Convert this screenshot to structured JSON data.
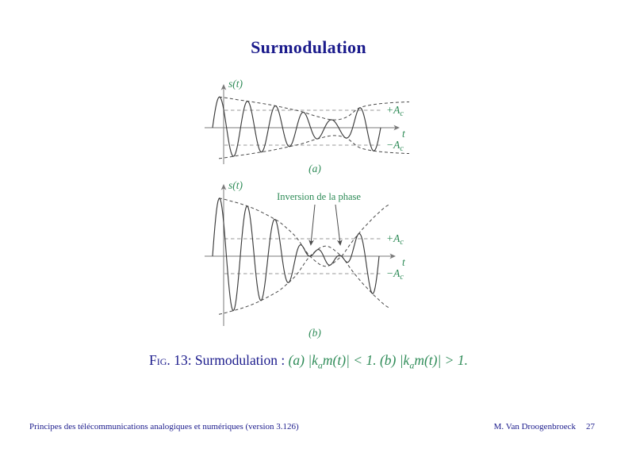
{
  "slide": {
    "title": "Surmodulation"
  },
  "colors": {
    "heading_text": "#1b1b8c",
    "figure_labels": "#2e8b57",
    "signal_line": "#3b3b3b",
    "envelope_line": "#4a4a4a",
    "ac_level_line": "#aeaeae",
    "axis_line": "#7a7a7a"
  },
  "figures": [
    {
      "id": "a",
      "label": "(a)",
      "axis_labels": {
        "y": "s(t)",
        "x": "t"
      },
      "level_labels": {
        "plus_base": "+A",
        "minus_base": "−A",
        "sub": "c"
      },
      "carrier_cycles": 6,
      "modulation_condition": "|ka m(t)| < 1",
      "envelope_ac_units": [
        [
          0.0,
          1.8
        ],
        [
          0.15,
          1.6
        ],
        [
          0.35,
          1.3
        ],
        [
          0.52,
          0.95
        ],
        [
          0.65,
          0.58
        ],
        [
          0.73,
          0.45
        ],
        [
          0.8,
          0.62
        ],
        [
          0.87,
          1.12
        ],
        [
          0.95,
          1.32
        ],
        [
          1.05,
          1.42
        ],
        [
          1.17,
          1.48
        ]
      ]
    },
    {
      "id": "b",
      "label": "(b)",
      "axis_labels": {
        "y": "s(t)",
        "x": "t"
      },
      "level_labels": {
        "plus_base": "+A",
        "minus_base": "−A",
        "sub": "c"
      },
      "annotation": "Inversion de la phase",
      "carrier_cycles": 6,
      "modulation_condition": "|ka m(t)| > 1",
      "phase_inversion_u": [
        0.585,
        0.775
      ],
      "envelope_ac_units": [
        [
          0.0,
          3.38
        ],
        [
          0.1,
          3.18
        ],
        [
          0.25,
          2.72
        ],
        [
          0.4,
          1.98
        ],
        [
          0.5,
          1.12
        ],
        [
          0.585,
          0.0
        ],
        [
          0.68,
          -0.58
        ],
        [
          0.775,
          0.0
        ],
        [
          0.84,
          0.85
        ],
        [
          0.9,
          1.55
        ],
        [
          0.97,
          2.25
        ],
        [
          1.06,
          2.95
        ]
      ]
    }
  ],
  "caption": {
    "fig_tag": "Fig.",
    "label_rest": " 13: Surmodulation : ",
    "math": {
      "p1": "(a) |k",
      "sub1": "a",
      "p2": "m(t)| < 1. (b) |k",
      "sub2": "a",
      "p3": "m(t)| > 1."
    }
  },
  "footer": {
    "left": "Principes des télécommunications analogiques et numériques (version 3.126)",
    "author": "M. Van Droogenbroeck",
    "page": "27"
  }
}
